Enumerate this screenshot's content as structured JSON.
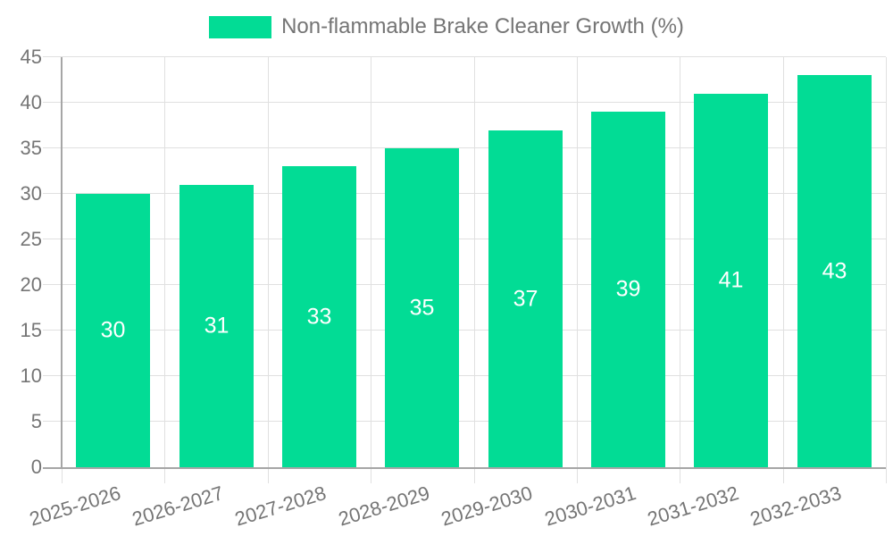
{
  "legend": {
    "items": [
      {
        "label": "Non-flammable Brake Cleaner Growth (%)",
        "swatch_color": "#02DC95"
      }
    ]
  },
  "chart_data": {
    "type": "bar",
    "title": "Non-flammable Brake Cleaner Growth (%)",
    "categories": [
      "2025-2026",
      "2026-2027",
      "2027-2028",
      "2028-2029",
      "2029-2030",
      "2030-2031",
      "2031-2032",
      "2032-2033"
    ],
    "values": [
      30,
      31,
      33,
      35,
      37,
      39,
      41,
      43
    ],
    "xlabel": "",
    "ylabel": "",
    "ylim": [
      0,
      45
    ],
    "ytick_step": 5,
    "grid": true,
    "legend_position": "top",
    "bar_value_labels_shown": true,
    "colors": {
      "bar": "#02DC95",
      "bar_value_label": "#FFFFFF",
      "axis_text": "#757575",
      "gridline": "#E0E0E0",
      "axis_line": "#A6A6A6",
      "background": "#FFFFFF"
    }
  }
}
